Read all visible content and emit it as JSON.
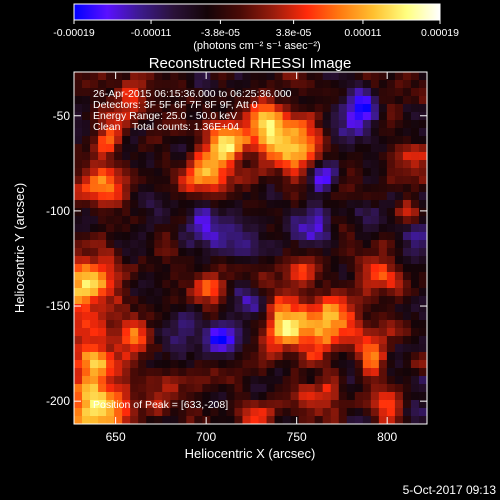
{
  "chart_data": {
    "type": "heatmap",
    "title": "Reconstructed RHESSI Image",
    "xlabel": "Heliocentric X (arcsec)",
    "ylabel": "Heliocentric Y (arcsec)",
    "xlim": [
      627,
      822
    ],
    "ylim": [
      -212,
      -27
    ],
    "xticks": [
      650,
      700,
      750,
      800
    ],
    "yticks": [
      -50,
      -100,
      -150,
      -200
    ],
    "annotations": [
      "26-Apr-2015 06:15:36.000 to 06:25:36.000",
      "Detectors: 3F 5F 6F 7F 8F 9F, Att 0",
      "Energy Range: 25.0 - 50.0 keV",
      "Clean    Total counts: 1.36E+04"
    ],
    "peak_text": "Position of Peak = [633,-208]",
    "colorbar": {
      "range": [
        -0.00019,
        0.00019
      ],
      "tick_values": [
        -0.00019,
        -0.00011,
        -3.8e-05,
        3.8e-05,
        0.00011,
        0.00019
      ],
      "tick_labels": [
        "-0.00019",
        "-0.00011",
        "-3.8e-05",
        "3.8e-05",
        "0.00011",
        "0.00019"
      ],
      "unit_label": "(photons cm⁻² s⁻¹ asec⁻²)",
      "colors": [
        "#0000ff",
        "#5a10ff",
        "#3c1a8c",
        "#2a1238",
        "#140408",
        "#4a0a06",
        "#9a1c0c",
        "#ff2a0a",
        "#ff7a10",
        "#ffc030",
        "#ffff80",
        "#ffffff"
      ]
    },
    "peak": [
      633,
      -208
    ],
    "hotspots": [
      {
        "x": 735,
        "y": -55,
        "level": 0.75,
        "r": 14
      },
      {
        "x": 750,
        "y": -65,
        "level": 0.9,
        "r": 12
      },
      {
        "x": 712,
        "y": -65,
        "level": 0.95,
        "r": 11
      },
      {
        "x": 700,
        "y": -80,
        "level": 0.8,
        "r": 12
      },
      {
        "x": 642,
        "y": -85,
        "level": 0.65,
        "r": 12
      },
      {
        "x": 648,
        "y": -60,
        "level": 0.55,
        "r": 10
      },
      {
        "x": 660,
        "y": -40,
        "level": 0.45,
        "r": 9
      },
      {
        "x": 635,
        "y": -140,
        "level": 0.9,
        "r": 18
      },
      {
        "x": 640,
        "y": -205,
        "level": 1.0,
        "r": 16
      },
      {
        "x": 638,
        "y": -180,
        "level": 0.75,
        "r": 14
      },
      {
        "x": 660,
        "y": -165,
        "level": 0.55,
        "r": 10
      },
      {
        "x": 745,
        "y": -160,
        "level": 0.9,
        "r": 16
      },
      {
        "x": 770,
        "y": -160,
        "level": 0.7,
        "r": 12
      },
      {
        "x": 790,
        "y": -175,
        "level": 0.65,
        "r": 10
      },
      {
        "x": 795,
        "y": -135,
        "level": 0.6,
        "r": 12
      },
      {
        "x": 755,
        "y": -130,
        "level": 0.5,
        "r": 9
      },
      {
        "x": 765,
        "y": -200,
        "level": 0.55,
        "r": 10
      },
      {
        "x": 805,
        "y": -205,
        "level": 0.6,
        "r": 10
      },
      {
        "x": 735,
        "y": -205,
        "level": 0.45,
        "r": 9
      },
      {
        "x": 700,
        "y": -140,
        "level": 0.5,
        "r": 10
      },
      {
        "x": 680,
        "y": -195,
        "level": 0.4,
        "r": 9
      },
      {
        "x": 815,
        "y": -75,
        "level": 0.45,
        "r": 9
      },
      {
        "x": 810,
        "y": -100,
        "level": 0.4,
        "r": 8
      }
    ],
    "coldspots": [
      {
        "x": 783,
        "y": -50,
        "level": -0.8,
        "r": 12
      },
      {
        "x": 765,
        "y": -85,
        "level": -0.55,
        "r": 10
      },
      {
        "x": 700,
        "y": -110,
        "level": -0.55,
        "r": 12
      },
      {
        "x": 760,
        "y": -110,
        "level": -0.5,
        "r": 10
      },
      {
        "x": 720,
        "y": -115,
        "level": -0.55,
        "r": 12
      },
      {
        "x": 725,
        "y": -150,
        "level": -0.5,
        "r": 10
      },
      {
        "x": 705,
        "y": -165,
        "level": -0.55,
        "r": 10
      },
      {
        "x": 685,
        "y": -165,
        "level": -0.5,
        "r": 10
      },
      {
        "x": 815,
        "y": -115,
        "level": -0.45,
        "r": 10
      },
      {
        "x": 815,
        "y": -205,
        "level": -0.5,
        "r": 8
      }
    ]
  },
  "footer": {
    "date_stamp": "5-Oct-2017 09:13"
  }
}
